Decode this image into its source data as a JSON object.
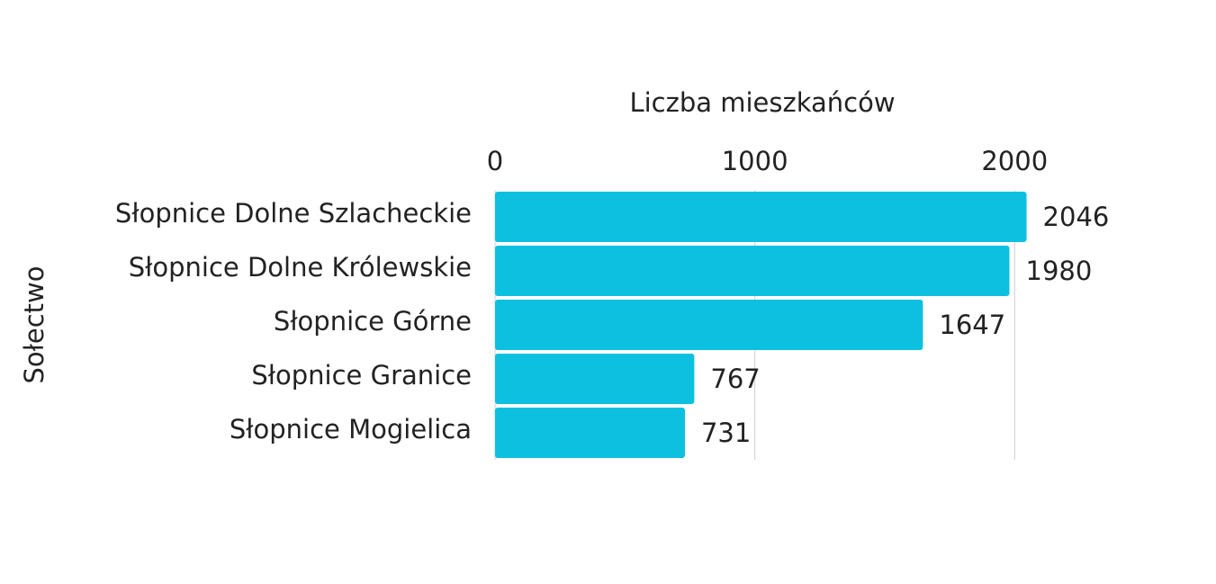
{
  "chart_data": {
    "type": "hbar",
    "x_label": "Liczba mieszkańców",
    "y_label": "Sołectwo",
    "categories": [
      "Słopnice Dolne Szlacheckie",
      "Słopnice Dolne Królewskie",
      "Słopnice Górne",
      "Słopnice Granice",
      "Słopnice Mogielica"
    ],
    "values": [
      2046,
      1980,
      1647,
      767,
      731
    ],
    "color": "#0dc0e0",
    "xlim": [
      0,
      2200
    ],
    "xticks": [
      0,
      1000,
      2000
    ],
    "grid": true
  }
}
